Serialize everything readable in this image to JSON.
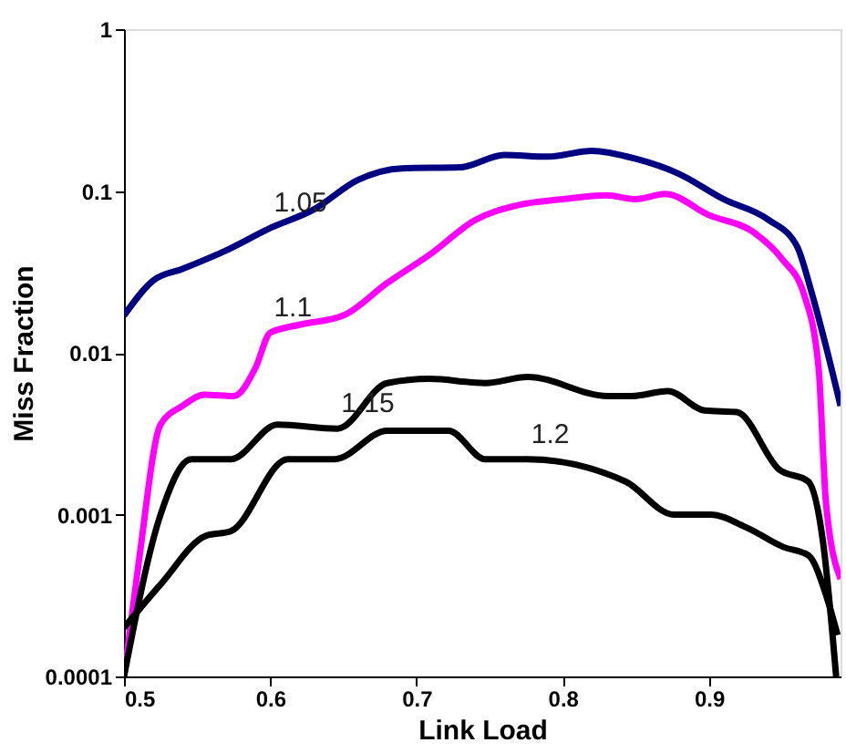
{
  "chart_data": {
    "type": "line",
    "xlabel": "Link Load",
    "ylabel": "Miss Fraction",
    "log": "y",
    "xlim": [
      0.5,
      0.99
    ],
    "xticks": [
      0.5,
      0.6,
      0.7,
      0.8,
      0.9
    ],
    "ylim": [
      0.0001,
      1
    ],
    "yticks": [
      0.0001,
      0.001,
      0.01,
      0.1,
      1
    ],
    "grid": false,
    "marker": "none",
    "line_style": "solid",
    "series": [
      {
        "color": "#000080",
        "x": [
          0.5,
          0.52,
          0.54,
          0.57,
          0.6,
          0.63,
          0.66,
          0.69,
          0.73,
          0.76,
          0.79,
          0.82,
          0.85,
          0.88,
          0.91,
          0.94,
          0.96,
          0.97,
          0.98,
          0.99
        ],
        "values": [
          0.017,
          0.028,
          0.033,
          0.043,
          0.059,
          0.077,
          0.117,
          0.138,
          0.14,
          0.167,
          0.163,
          0.177,
          0.158,
          0.127,
          0.089,
          0.067,
          0.046,
          0.024,
          0.011,
          0.0047
        ]
      },
      {
        "color": "#ff00ff",
        "x": [
          0.5,
          0.51,
          0.525,
          0.54,
          0.555,
          0.575,
          0.59,
          0.6,
          0.62,
          0.65,
          0.68,
          0.71,
          0.74,
          0.77,
          0.8,
          0.83,
          0.85,
          0.87,
          0.9,
          0.93,
          0.95,
          0.965,
          0.975,
          0.98,
          0.99
        ],
        "values": [
          0.0001,
          0.0005,
          0.0036,
          0.0047,
          0.0055,
          0.0054,
          0.0081,
          0.0133,
          0.0149,
          0.017,
          0.027,
          0.041,
          0.066,
          0.082,
          0.089,
          0.094,
          0.089,
          0.096,
          0.071,
          0.056,
          0.038,
          0.023,
          0.0081,
          0.0012,
          0.0004
        ]
      },
      {
        "color": "#000000",
        "x": [
          0.5,
          0.525,
          0.546,
          0.573,
          0.605,
          0.646,
          0.68,
          0.709,
          0.747,
          0.776,
          0.831,
          0.847,
          0.872,
          0.897,
          0.919,
          0.948,
          0.968,
          0.978,
          0.987
        ],
        "values": [
          0.0001,
          0.001,
          0.0022,
          0.0022,
          0.0036,
          0.0034,
          0.0065,
          0.0069,
          0.0065,
          0.0071,
          0.0054,
          0.0054,
          0.0058,
          0.0044,
          0.0043,
          0.0019,
          0.0016,
          0.00068,
          0.0001
        ]
      },
      {
        "color": "#000000",
        "x": [
          0.5,
          0.525,
          0.556,
          0.573,
          0.612,
          0.644,
          0.68,
          0.722,
          0.747,
          0.776,
          0.843,
          0.876,
          0.901,
          0.926,
          0.951,
          0.968,
          0.981,
          0.988
        ],
        "values": [
          0.0002,
          0.00037,
          0.00074,
          0.00079,
          0.0022,
          0.0022,
          0.0033,
          0.0033,
          0.0022,
          0.0022,
          0.0016,
          0.001,
          0.001,
          0.00083,
          0.00063,
          0.00056,
          0.0003,
          0.00018
        ]
      }
    ],
    "annotations": [
      {
        "text": "1.05",
        "x": 0.6,
        "y": 0.059
      },
      {
        "text": "1.1",
        "x": 0.6,
        "y": 0.0133
      },
      {
        "text": "1.15",
        "x": 0.646,
        "y": 0.0034
      },
      {
        "text": "1.2",
        "x": 0.776,
        "y": 0.0022
      }
    ]
  }
}
